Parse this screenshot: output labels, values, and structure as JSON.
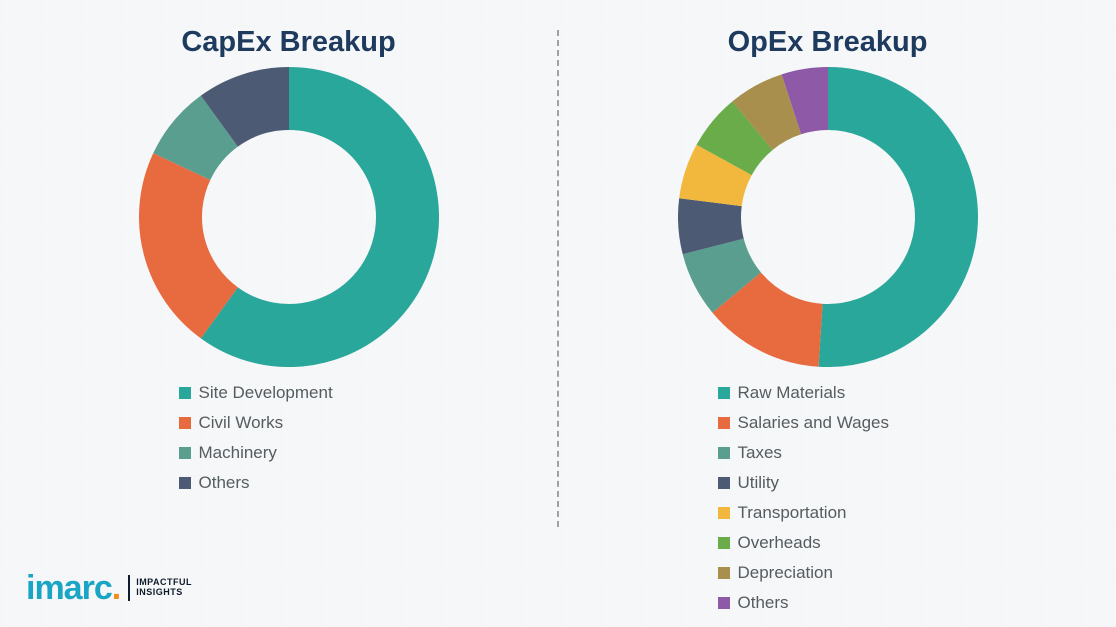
{
  "background_color": "#f5f7f8",
  "divider_color": "#9aa3a8",
  "title_color": "#1e3a5f",
  "legend_text_color": "#555c60",
  "capex": {
    "title": "CapEx Breakup",
    "type": "donut",
    "inner_radius_pct": 62,
    "stroke_width": 42,
    "start_angle_deg": 0,
    "series": [
      {
        "label": "Site Development",
        "value": 60,
        "color": "#2aa79b"
      },
      {
        "label": "Civil Works",
        "value": 22,
        "color": "#e86a3f"
      },
      {
        "label": "Machinery",
        "value": 8,
        "color": "#5a9e8f"
      },
      {
        "label": "Others",
        "value": 10,
        "color": "#4d5a73"
      }
    ]
  },
  "opex": {
    "title": "OpEx Breakup",
    "type": "donut",
    "inner_radius_pct": 62,
    "stroke_width": 42,
    "start_angle_deg": 0,
    "series": [
      {
        "label": "Raw Materials",
        "value": 51,
        "color": "#2aa79b"
      },
      {
        "label": "Salaries and Wages",
        "value": 13,
        "color": "#e86a3f"
      },
      {
        "label": "Taxes",
        "value": 7,
        "color": "#5a9e8f"
      },
      {
        "label": "Utility",
        "value": 6,
        "color": "#4d5a73"
      },
      {
        "label": "Transportation",
        "value": 6,
        "color": "#f2b83e"
      },
      {
        "label": "Overheads",
        "value": 6,
        "color": "#6aab4a"
      },
      {
        "label": "Depreciation",
        "value": 6,
        "color": "#a88f4e"
      },
      {
        "label": "Others",
        "value": 5,
        "color": "#8e5aa8"
      }
    ]
  },
  "logo": {
    "brand": "imarc",
    "tag_line1": "IMPACTFUL",
    "tag_line2": "INSIGHTS",
    "brand_color": "#1aa5c4",
    "dot_color": "#f28c1f",
    "tag_color": "#0d1b2a"
  }
}
